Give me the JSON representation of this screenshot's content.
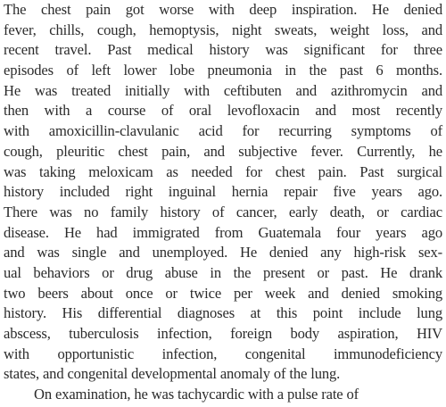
{
  "paragraph": {
    "lines": [
      "The chest pain got worse with deep inspiration. He denied",
      "fever, chills, cough, hemoptysis, night sweats, weight loss, and",
      "recent travel. Past medical history was significant for three",
      "episodes of left lower lobe pneumonia in the past 6 months.",
      "He was treated initially with ceftibuten and azithromycin and",
      "then with a course of oral levofloxacin and most recently",
      "with amoxicillin-clavulanic acid for recurring symptoms of",
      "cough, pleuritic chest pain, and subjective fever. Currently, he",
      "was taking meloxicam as needed for chest pain. Past surgical",
      "history included right inguinal hernia repair five years ago.",
      "There was no family history of cancer, early death, or cardiac",
      "disease. He had immigrated from Guatemala four years ago",
      "and was single and unemployed. He denied any high-risk sex-",
      "ual behaviors or drug abuse in the present or past. He drank",
      "two beers about once or twice per week and denied smoking",
      "history. His differential diagnoses at this point include lung",
      "abscess, tuberculosis infection, foreign body aspiration, HIV",
      "with opportunistic infection, congenital immunodeficiency",
      "states, and congenital developmental anomaly of the lung.",
      "On examination, he was tachycardic with a pulse rate of"
    ]
  }
}
